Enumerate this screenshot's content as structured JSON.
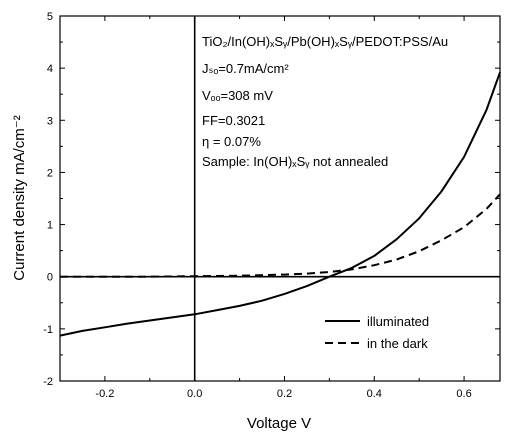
{
  "chart_data": {
    "type": "line",
    "title": "",
    "xlabel": "Voltage  V",
    "ylabel": "Current density   mA/cm⁻²",
    "xlim": [
      -0.3,
      0.68
    ],
    "ylim": [
      -2,
      5
    ],
    "x_ticks": [
      -0.2,
      0.0,
      0.2,
      0.4,
      0.6
    ],
    "y_ticks": [
      -2,
      -1,
      0,
      1,
      2,
      3,
      4,
      5
    ],
    "x_tick_labels": [
      "-0.2",
      "0.0",
      "0.2",
      "0.4",
      "0.6"
    ],
    "y_tick_labels": [
      "-2",
      "-1",
      "0",
      "1",
      "2",
      "3",
      "4",
      "5"
    ],
    "grid": false,
    "legend_position": "bottom-right",
    "series": [
      {
        "name": "illuminated",
        "style": "solid",
        "color": "#000000",
        "x": [
          -0.3,
          -0.25,
          -0.2,
          -0.15,
          -0.1,
          -0.05,
          0.0,
          0.05,
          0.1,
          0.15,
          0.2,
          0.25,
          0.3,
          0.35,
          0.4,
          0.45,
          0.5,
          0.55,
          0.6,
          0.65,
          0.68
        ],
        "y": [
          -1.13,
          -1.04,
          -0.97,
          -0.9,
          -0.84,
          -0.78,
          -0.72,
          -0.64,
          -0.56,
          -0.46,
          -0.33,
          -0.18,
          0.0,
          0.17,
          0.4,
          0.72,
          1.12,
          1.64,
          2.3,
          3.2,
          3.92
        ]
      },
      {
        "name": "in the dark",
        "style": "dashed",
        "color": "#000000",
        "x": [
          -0.3,
          -0.2,
          -0.1,
          0.0,
          0.1,
          0.2,
          0.25,
          0.3,
          0.35,
          0.4,
          0.45,
          0.5,
          0.55,
          0.6,
          0.65,
          0.68
        ],
        "y": [
          0.0,
          0.0,
          0.0,
          0.01,
          0.02,
          0.04,
          0.06,
          0.09,
          0.14,
          0.22,
          0.33,
          0.49,
          0.7,
          0.95,
          1.3,
          1.58
        ]
      }
    ],
    "annotations": {
      "device": "TiO₂/In(OH)ₓSᵧ/Pb(OH)ₓSᵧ/PEDOT:PSS/Au",
      "jsc": "Jₛₒ=0.7mA/cm²",
      "voc": "Vₒₒ=308 mV",
      "ff": "FF=0.3021",
      "eta": "η  = 0.07%",
      "sample": "Sample: In(OH)ₓSᵧ not annealed"
    }
  }
}
